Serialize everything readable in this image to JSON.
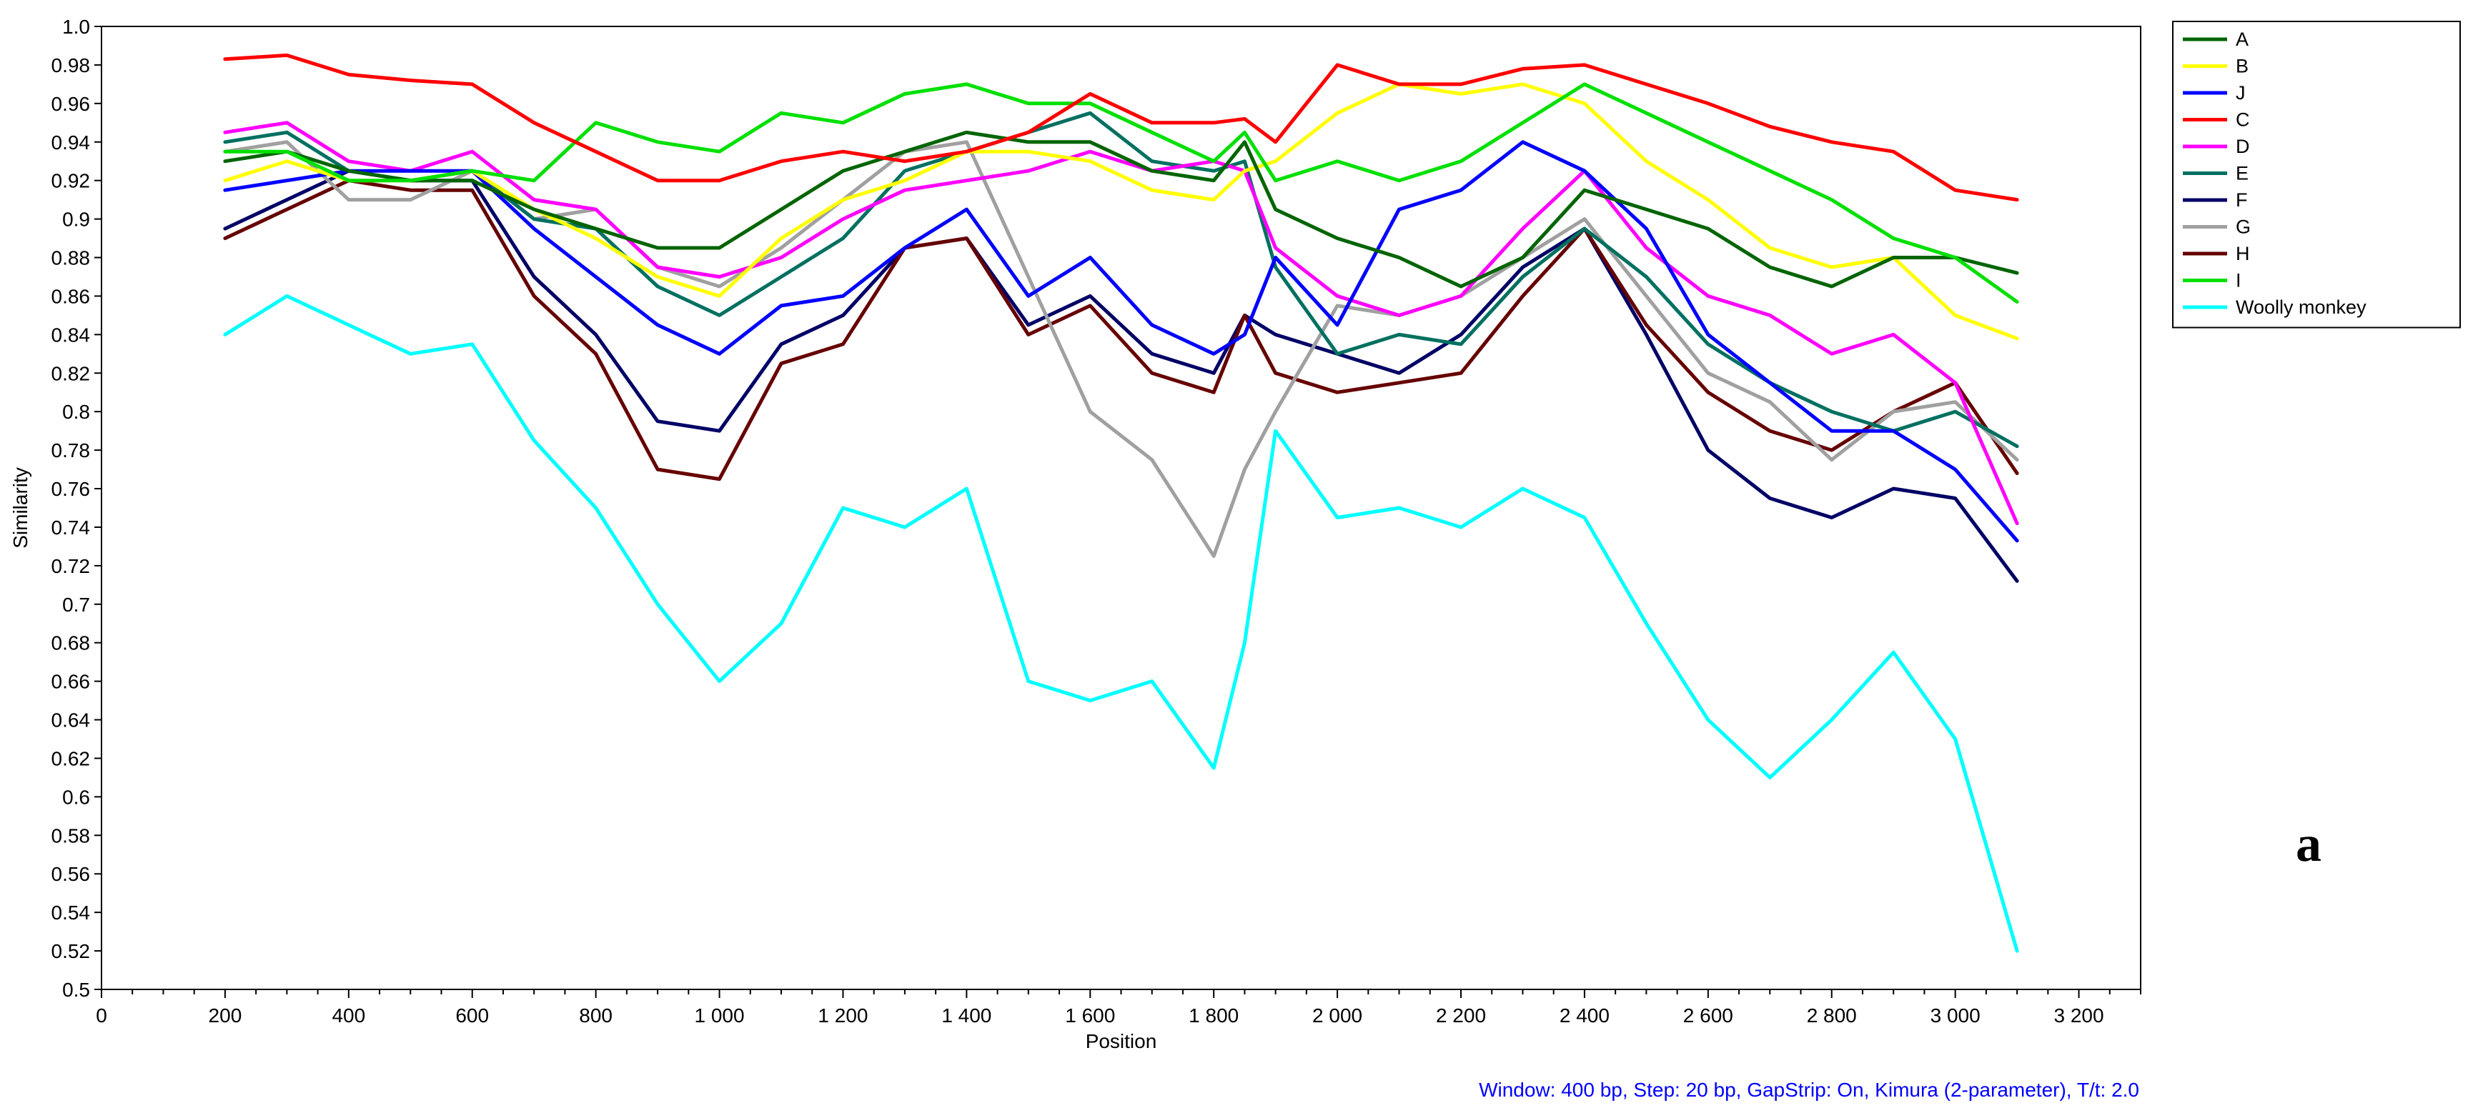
{
  "chart_data": {
    "type": "line",
    "xlabel": "Position",
    "ylabel": "Similarity",
    "xlim": [
      0,
      3300
    ],
    "ylim": [
      0.5,
      1.0
    ],
    "x_ticks": [
      0,
      200,
      400,
      600,
      800,
      1000,
      1200,
      1400,
      1600,
      1800,
      2000,
      2200,
      2400,
      2600,
      2800,
      3000,
      3200
    ],
    "x_tick_labels": [
      "0",
      "200",
      "400",
      "600",
      "800",
      "1 000",
      "1 200",
      "1 400",
      "1 600",
      "1 800",
      "2 000",
      "2 200",
      "2 400",
      "2 600",
      "2 800",
      "3 000",
      "3 200"
    ],
    "y_ticks": [
      0.5,
      0.52,
      0.54,
      0.56,
      0.58,
      0.6,
      0.62,
      0.64,
      0.66,
      0.68,
      0.7,
      0.72,
      0.74,
      0.76,
      0.78,
      0.8,
      0.82,
      0.84,
      0.86,
      0.88,
      0.9,
      0.92,
      0.94,
      0.96,
      0.98,
      1.0
    ],
    "y_tick_labels": [
      "0.5",
      "0.52",
      "0.54",
      "0.56",
      "0.58",
      "0.6",
      "0.62",
      "0.64",
      "0.66",
      "0.68",
      "0.7",
      "0.72",
      "0.74",
      "0.76",
      "0.78",
      "0.8",
      "0.82",
      "0.84",
      "0.86",
      "0.88",
      "0.9",
      "0.92",
      "0.94",
      "0.96",
      "0.98",
      "1.0"
    ],
    "grid": false,
    "legend_position": "top-right, outside plot",
    "x": [
      200,
      300,
      400,
      500,
      600,
      700,
      800,
      900,
      1000,
      1100,
      1200,
      1300,
      1400,
      1500,
      1600,
      1700,
      1800,
      1850,
      1900,
      2000,
      2100,
      2200,
      2300,
      2400,
      2500,
      2600,
      2700,
      2800,
      2900,
      3000,
      3100
    ],
    "series": [
      {
        "name": "A",
        "color": "#006400",
        "values": [
          0.93,
          0.935,
          0.925,
          0.92,
          0.92,
          0.905,
          0.895,
          0.885,
          0.885,
          0.905,
          0.925,
          0.935,
          0.945,
          0.94,
          0.94,
          0.925,
          0.92,
          0.94,
          0.905,
          0.89,
          0.88,
          0.865,
          0.88,
          0.915,
          0.905,
          0.895,
          0.875,
          0.865,
          0.88,
          0.88,
          0.872
        ]
      },
      {
        "name": "B",
        "color": "#ffff00",
        "values": [
          0.92,
          0.93,
          0.92,
          0.92,
          0.925,
          0.905,
          0.89,
          0.87,
          0.86,
          0.89,
          0.91,
          0.92,
          0.935,
          0.935,
          0.93,
          0.915,
          0.91,
          0.925,
          0.93,
          0.955,
          0.97,
          0.965,
          0.97,
          0.96,
          0.93,
          0.91,
          0.885,
          0.875,
          0.88,
          0.85,
          0.838
        ]
      },
      {
        "name": "J",
        "color": "#0000ff",
        "values": [
          0.915,
          0.92,
          0.925,
          0.925,
          0.925,
          0.895,
          0.87,
          0.845,
          0.83,
          0.855,
          0.86,
          0.885,
          0.905,
          0.86,
          0.88,
          0.845,
          0.83,
          0.84,
          0.88,
          0.845,
          0.905,
          0.915,
          0.94,
          0.925,
          0.895,
          0.84,
          0.815,
          0.79,
          0.79,
          0.77,
          0.733
        ]
      },
      {
        "name": "C",
        "color": "#ff0000",
        "values": [
          0.983,
          0.985,
          0.975,
          0.972,
          0.97,
          0.95,
          0.935,
          0.92,
          0.92,
          0.93,
          0.935,
          0.93,
          0.935,
          0.945,
          0.965,
          0.95,
          0.95,
          0.952,
          0.94,
          0.98,
          0.97,
          0.97,
          0.978,
          0.98,
          0.97,
          0.96,
          0.948,
          0.94,
          0.935,
          0.915,
          0.91
        ]
      },
      {
        "name": "D",
        "color": "#ff00ff",
        "values": [
          0.945,
          0.95,
          0.93,
          0.925,
          0.935,
          0.91,
          0.905,
          0.875,
          0.87,
          0.88,
          0.9,
          0.915,
          0.92,
          0.925,
          0.935,
          0.925,
          0.93,
          0.925,
          0.885,
          0.86,
          0.85,
          0.86,
          0.895,
          0.925,
          0.885,
          0.86,
          0.85,
          0.83,
          0.84,
          0.815,
          0.742
        ]
      },
      {
        "name": "E",
        "color": "#007060",
        "values": [
          0.94,
          0.945,
          0.925,
          0.92,
          0.925,
          0.9,
          0.895,
          0.865,
          0.85,
          0.87,
          0.89,
          0.925,
          0.935,
          0.945,
          0.955,
          0.93,
          0.925,
          0.93,
          0.875,
          0.83,
          0.84,
          0.835,
          0.87,
          0.895,
          0.87,
          0.835,
          0.815,
          0.8,
          0.79,
          0.8,
          0.782
        ]
      },
      {
        "name": "F",
        "color": "#000066",
        "values": [
          0.895,
          0.91,
          0.925,
          0.92,
          0.92,
          0.87,
          0.84,
          0.795,
          0.79,
          0.835,
          0.85,
          0.885,
          0.89,
          0.845,
          0.86,
          0.83,
          0.82,
          0.85,
          0.84,
          0.83,
          0.82,
          0.84,
          0.875,
          0.895,
          0.84,
          0.78,
          0.755,
          0.745,
          0.76,
          0.755,
          0.712
        ]
      },
      {
        "name": "G",
        "color": "#a0a0a0",
        "values": [
          0.935,
          0.94,
          0.91,
          0.91,
          0.925,
          0.9,
          0.905,
          0.875,
          0.865,
          0.885,
          0.91,
          0.935,
          0.94,
          0.87,
          0.8,
          0.775,
          0.725,
          0.77,
          0.8,
          0.855,
          0.85,
          0.86,
          0.88,
          0.9,
          0.86,
          0.82,
          0.805,
          0.775,
          0.8,
          0.805,
          0.775
        ]
      },
      {
        "name": "H",
        "color": "#660000",
        "values": [
          0.89,
          0.905,
          0.92,
          0.915,
          0.915,
          0.86,
          0.83,
          0.77,
          0.765,
          0.825,
          0.835,
          0.885,
          0.89,
          0.84,
          0.855,
          0.82,
          0.81,
          0.85,
          0.82,
          0.81,
          0.815,
          0.82,
          0.86,
          0.895,
          0.845,
          0.81,
          0.79,
          0.78,
          0.8,
          0.815,
          0.768
        ]
      },
      {
        "name": "I",
        "color": "#00e000",
        "values": [
          0.935,
          0.935,
          0.92,
          0.92,
          0.925,
          0.92,
          0.95,
          0.94,
          0.935,
          0.955,
          0.95,
          0.965,
          0.97,
          0.96,
          0.96,
          0.945,
          0.93,
          0.945,
          0.92,
          0.93,
          0.92,
          0.93,
          0.95,
          0.97,
          0.955,
          0.94,
          0.925,
          0.91,
          0.89,
          0.88,
          0.857
        ]
      },
      {
        "name": "Woolly monkey",
        "color": "#00ffff",
        "values": [
          0.84,
          0.86,
          0.845,
          0.83,
          0.835,
          0.785,
          0.75,
          0.7,
          0.66,
          0.69,
          0.75,
          0.74,
          0.76,
          0.66,
          0.65,
          0.66,
          0.615,
          0.68,
          0.79,
          0.745,
          0.75,
          0.74,
          0.76,
          0.745,
          0.69,
          0.64,
          0.61,
          0.64,
          0.675,
          0.63,
          0.52
        ]
      }
    ],
    "annotations": [
      {
        "text": "a"
      },
      {
        "text": "Window: 400 bp, Step: 20 bp, GapStrip: On, Kimura (2-parameter), T/t: 2.0"
      }
    ]
  }
}
